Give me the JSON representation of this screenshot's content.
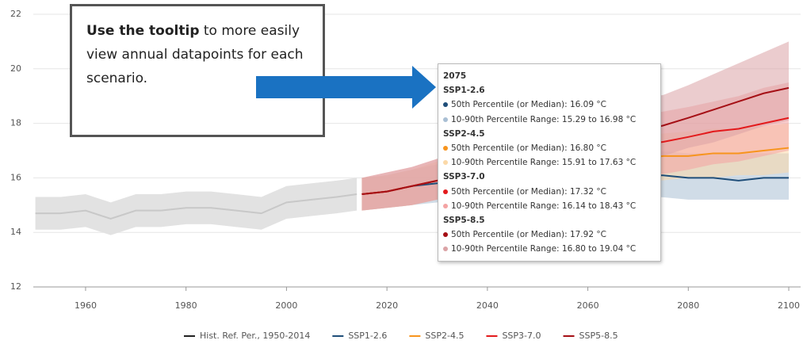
{
  "chart_data": {
    "type": "line",
    "xlim": [
      1950,
      2102
    ],
    "xticks": [
      1960,
      1980,
      2000,
      2020,
      2040,
      2060,
      2080,
      2100
    ],
    "ylim": [
      12,
      22
    ],
    "yticks": [
      12,
      14,
      16,
      18,
      20,
      22
    ],
    "grid": true,
    "legend": "bottom",
    "series": [
      {
        "name": "Hist. Ref. Per., 1950-2014",
        "color": "#222222",
        "line_color": "#c8c8c8",
        "band_color": "#e2e2e2",
        "x": [
          1950,
          1955,
          1960,
          1965,
          1970,
          1975,
          1980,
          1985,
          1990,
          1995,
          2000,
          2005,
          2010,
          2014
        ],
        "values": [
          14.7,
          14.7,
          14.8,
          14.5,
          14.8,
          14.8,
          14.9,
          14.9,
          14.8,
          14.7,
          15.1,
          15.2,
          15.3,
          15.4
        ],
        "lower": [
          14.1,
          14.1,
          14.2,
          13.9,
          14.2,
          14.2,
          14.3,
          14.3,
          14.2,
          14.1,
          14.5,
          14.6,
          14.7,
          14.8
        ],
        "upper": [
          15.3,
          15.3,
          15.4,
          15.1,
          15.4,
          15.4,
          15.5,
          15.5,
          15.4,
          15.3,
          15.7,
          15.8,
          15.9,
          16.0
        ]
      },
      {
        "name": "SSP1-2.6",
        "color": "#1f4e79",
        "band_color": "#a9bfd4",
        "x": [
          2015,
          2020,
          2025,
          2030,
          2035,
          2040,
          2045,
          2050,
          2055,
          2060,
          2065,
          2070,
          2075,
          2080,
          2085,
          2090,
          2095,
          2100
        ],
        "values": [
          15.4,
          15.5,
          15.7,
          15.8,
          15.9,
          16.0,
          16.0,
          16.1,
          16.1,
          16.1,
          16.0,
          16.1,
          16.09,
          16.0,
          16.0,
          15.9,
          16.0,
          16.0
        ],
        "lower": [
          14.8,
          14.9,
          15.0,
          15.1,
          15.2,
          15.2,
          15.3,
          15.3,
          15.3,
          15.3,
          15.3,
          15.3,
          15.29,
          15.2,
          15.2,
          15.2,
          15.2,
          15.2
        ],
        "upper": [
          16.0,
          16.1,
          16.3,
          16.5,
          16.6,
          16.7,
          16.8,
          16.8,
          16.9,
          16.9,
          16.9,
          16.9,
          16.98,
          16.9,
          16.9,
          16.9,
          16.9,
          16.9
        ]
      },
      {
        "name": "SSP2-4.5",
        "color": "#f7941d",
        "band_color": "#fbd9a8",
        "x": [
          2015,
          2020,
          2025,
          2030,
          2035,
          2040,
          2045,
          2050,
          2055,
          2060,
          2065,
          2070,
          2075,
          2080,
          2085,
          2090,
          2095,
          2100
        ],
        "values": [
          15.4,
          15.5,
          15.7,
          15.9,
          16.0,
          16.2,
          16.3,
          16.4,
          16.5,
          16.6,
          16.6,
          16.7,
          16.8,
          16.8,
          16.9,
          16.9,
          17.0,
          17.1
        ],
        "lower": [
          14.8,
          14.9,
          15.0,
          15.2,
          15.3,
          15.4,
          15.5,
          15.6,
          15.7,
          15.8,
          15.8,
          15.9,
          15.91,
          16.0,
          16.0,
          16.1,
          16.1,
          16.2
        ],
        "upper": [
          16.0,
          16.1,
          16.3,
          16.6,
          16.8,
          16.9,
          17.0,
          17.1,
          17.3,
          17.4,
          17.5,
          17.5,
          17.63,
          17.7,
          17.8,
          17.8,
          17.9,
          18.0
        ]
      },
      {
        "name": "SSP3-7.0",
        "color": "#e31a1c",
        "band_color": "#f4a3a3",
        "x": [
          2015,
          2020,
          2025,
          2030,
          2035,
          2040,
          2045,
          2050,
          2055,
          2060,
          2065,
          2070,
          2075,
          2080,
          2085,
          2090,
          2095,
          2100
        ],
        "values": [
          15.4,
          15.5,
          15.7,
          15.9,
          16.1,
          16.3,
          16.5,
          16.7,
          16.9,
          17.0,
          17.1,
          17.2,
          17.32,
          17.5,
          17.7,
          17.8,
          18.0,
          18.2
        ],
        "lower": [
          14.8,
          14.9,
          15.0,
          15.2,
          15.3,
          15.5,
          15.6,
          15.7,
          15.8,
          15.9,
          16.0,
          16.1,
          16.14,
          16.3,
          16.5,
          16.6,
          16.8,
          17.0
        ],
        "upper": [
          16.0,
          16.2,
          16.4,
          16.7,
          16.9,
          17.2,
          17.4,
          17.6,
          17.9,
          18.1,
          18.2,
          18.3,
          18.43,
          18.6,
          18.8,
          19.0,
          19.3,
          19.5
        ]
      },
      {
        "name": "SSP5-8.5",
        "color": "#a50f15",
        "band_color": "#dba3a6",
        "x": [
          2015,
          2020,
          2025,
          2030,
          2035,
          2040,
          2045,
          2050,
          2055,
          2060,
          2065,
          2070,
          2075,
          2080,
          2085,
          2090,
          2095,
          2100
        ],
        "values": [
          15.4,
          15.5,
          15.7,
          15.9,
          16.1,
          16.4,
          16.6,
          16.9,
          17.1,
          17.4,
          17.6,
          17.7,
          17.92,
          18.2,
          18.5,
          18.8,
          19.1,
          19.3
        ],
        "lower": [
          14.8,
          14.9,
          15.0,
          15.2,
          15.4,
          15.6,
          15.8,
          16.0,
          16.2,
          16.4,
          16.6,
          16.7,
          16.8,
          17.1,
          17.3,
          17.6,
          17.9,
          18.1
        ],
        "upper": [
          16.0,
          16.2,
          16.4,
          16.7,
          17.0,
          17.3,
          17.6,
          17.9,
          18.2,
          18.5,
          18.7,
          18.9,
          19.04,
          19.4,
          19.8,
          20.2,
          20.6,
          21.0
        ]
      }
    ],
    "tooltip": {
      "title": "2075",
      "items": [
        {
          "name": "SSP1-2.6",
          "median": "50th Percentile (or Median): 16.09 °C",
          "range": "10-90th Percentile Range: 15.29 to 16.98 °C"
        },
        {
          "name": "SSP2-4.5",
          "median": "50th Percentile (or Median): 16.80 °C",
          "range": "10-90th Percentile Range: 15.91 to 17.63 °C"
        },
        {
          "name": "SSP3-7.0",
          "median": "50th Percentile (or Median): 17.32 °C",
          "range": "10-90th Percentile Range: 16.14 to 18.43 °C"
        },
        {
          "name": "SSP5-8.5",
          "median": "50th Percentile (or Median): 17.92 °C",
          "range": "10-90th Percentile Range: 16.80 to 19.04 °C"
        }
      ]
    },
    "callout": {
      "bold": "Use the tooltip",
      "text": " to more easily view annual datapoints for each scenario."
    }
  }
}
